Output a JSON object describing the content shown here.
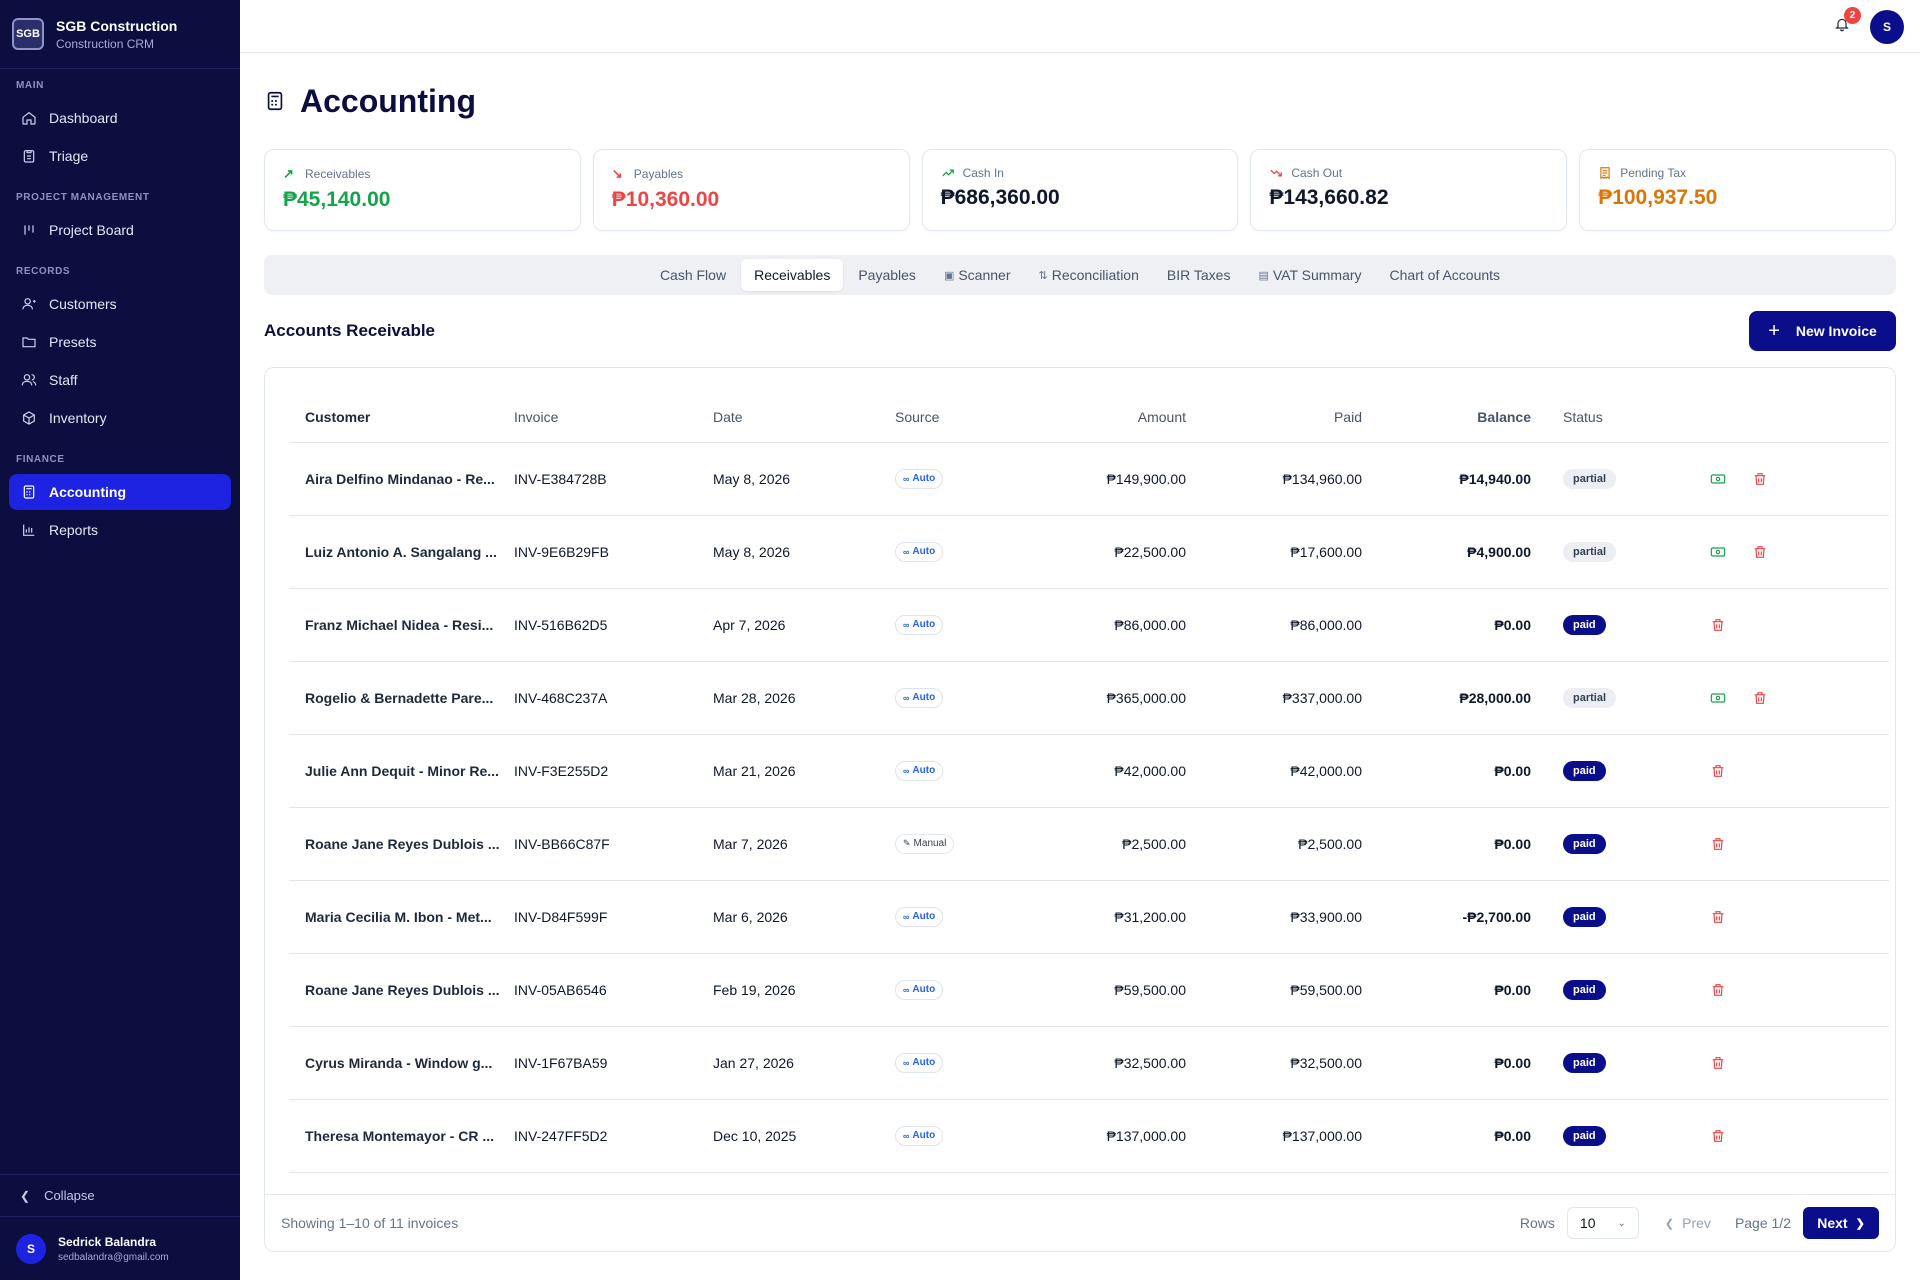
{
  "brand": {
    "logo": "SGB",
    "name": "SGB Construction",
    "subtitle": "Construction CRM"
  },
  "sidebar": {
    "sections": {
      "main": "MAIN",
      "project": "PROJECT MANAGEMENT",
      "records": "RECORDS",
      "finance": "FINANCE"
    },
    "items": {
      "dashboard": "Dashboard",
      "triage": "Triage",
      "project_board": "Project Board",
      "customers": "Customers",
      "presets": "Presets",
      "staff": "Staff",
      "inventory": "Inventory",
      "accounting": "Accounting",
      "reports": "Reports"
    },
    "collapse": "Collapse",
    "user": {
      "initial": "S",
      "name": "Sedrick Balandra",
      "email": "sedbalandra@gmail.com"
    }
  },
  "topbar": {
    "notification_count": "2",
    "avatar_initial": "S"
  },
  "page": {
    "title": "Accounting"
  },
  "stats": [
    {
      "label": "Receivables",
      "value": "₱45,140.00",
      "color": "#16a34a",
      "icon": "arrow-up-right-icon"
    },
    {
      "label": "Payables",
      "value": "₱10,360.00",
      "color": "#ef4444",
      "icon": "arrow-down-right-icon"
    },
    {
      "label": "Cash In",
      "value": "₱686,360.00",
      "color": "#0f172a",
      "icon": "trending-up-icon"
    },
    {
      "label": "Cash Out",
      "value": "₱143,660.82",
      "color": "#0f172a",
      "icon": "trending-down-icon"
    },
    {
      "label": "Pending Tax",
      "value": "₱100,937.50",
      "color": "#d97706",
      "icon": "receipt-icon"
    }
  ],
  "tabs": [
    {
      "label": "Cash Flow"
    },
    {
      "label": "Receivables",
      "active": true
    },
    {
      "label": "Payables"
    },
    {
      "label": "Scanner",
      "icon": "camera-icon"
    },
    {
      "label": "Reconciliation",
      "icon": "swap-icon"
    },
    {
      "label": "BIR Taxes"
    },
    {
      "label": "VAT Summary",
      "icon": "document-icon"
    },
    {
      "label": "Chart of Accounts"
    }
  ],
  "section": {
    "title": "Accounts Receivable",
    "new_button": "New Invoice"
  },
  "table": {
    "columns": [
      "Customer",
      "Invoice",
      "Date",
      "Source",
      "Amount",
      "Paid",
      "Balance",
      "Status"
    ],
    "rows": [
      {
        "customer": "Aira Delfino Mindanao - Re...",
        "invoice": "INV-E384728B",
        "date": "May 8, 2026",
        "source": "Auto",
        "amount": "₱149,900.00",
        "paid": "₱134,960.00",
        "balance": "₱14,940.00",
        "status": "partial"
      },
      {
        "customer": "Luiz Antonio A. Sangalang ...",
        "invoice": "INV-9E6B29FB",
        "date": "May 8, 2026",
        "source": "Auto",
        "amount": "₱22,500.00",
        "paid": "₱17,600.00",
        "balance": "₱4,900.00",
        "status": "partial"
      },
      {
        "customer": "Franz Michael Nidea - Resi...",
        "invoice": "INV-516B62D5",
        "date": "Apr 7, 2026",
        "source": "Auto",
        "amount": "₱86,000.00",
        "paid": "₱86,000.00",
        "balance": "₱0.00",
        "status": "paid"
      },
      {
        "customer": "Rogelio & Bernadette Pare...",
        "invoice": "INV-468C237A",
        "date": "Mar 28, 2026",
        "source": "Auto",
        "amount": "₱365,000.00",
        "paid": "₱337,000.00",
        "balance": "₱28,000.00",
        "status": "partial"
      },
      {
        "customer": "Julie Ann Dequit - Minor Re...",
        "invoice": "INV-F3E255D2",
        "date": "Mar 21, 2026",
        "source": "Auto",
        "amount": "₱42,000.00",
        "paid": "₱42,000.00",
        "balance": "₱0.00",
        "status": "paid"
      },
      {
        "customer": "Roane Jane Reyes Dublois ...",
        "invoice": "INV-BB66C87F",
        "date": "Mar 7, 2026",
        "source": "Manual",
        "amount": "₱2,500.00",
        "paid": "₱2,500.00",
        "balance": "₱0.00",
        "status": "paid"
      },
      {
        "customer": "Maria Cecilia M. Ibon - Met...",
        "invoice": "INV-D84F599F",
        "date": "Mar 6, 2026",
        "source": "Auto",
        "amount": "₱31,200.00",
        "paid": "₱33,900.00",
        "balance": "-₱2,700.00",
        "status": "paid"
      },
      {
        "customer": "Roane Jane Reyes Dublois ...",
        "invoice": "INV-05AB6546",
        "date": "Feb 19, 2026",
        "source": "Auto",
        "amount": "₱59,500.00",
        "paid": "₱59,500.00",
        "balance": "₱0.00",
        "status": "paid"
      },
      {
        "customer": "Cyrus Miranda - Window g...",
        "invoice": "INV-1F67BA59",
        "date": "Jan 27, 2026",
        "source": "Auto",
        "amount": "₱32,500.00",
        "paid": "₱32,500.00",
        "balance": "₱0.00",
        "status": "paid"
      },
      {
        "customer": "Theresa Montemayor - CR ...",
        "invoice": "INV-247FF5D2",
        "date": "Dec 10, 2025",
        "source": "Auto",
        "amount": "₱137,000.00",
        "paid": "₱137,000.00",
        "balance": "₱0.00",
        "status": "paid"
      }
    ]
  },
  "pagination": {
    "summary": "Showing 1–10 of 11 invoices",
    "rows_label": "Rows",
    "rows_value": "10",
    "prev": "Prev",
    "page": "Page 1/2",
    "next": "Next"
  }
}
